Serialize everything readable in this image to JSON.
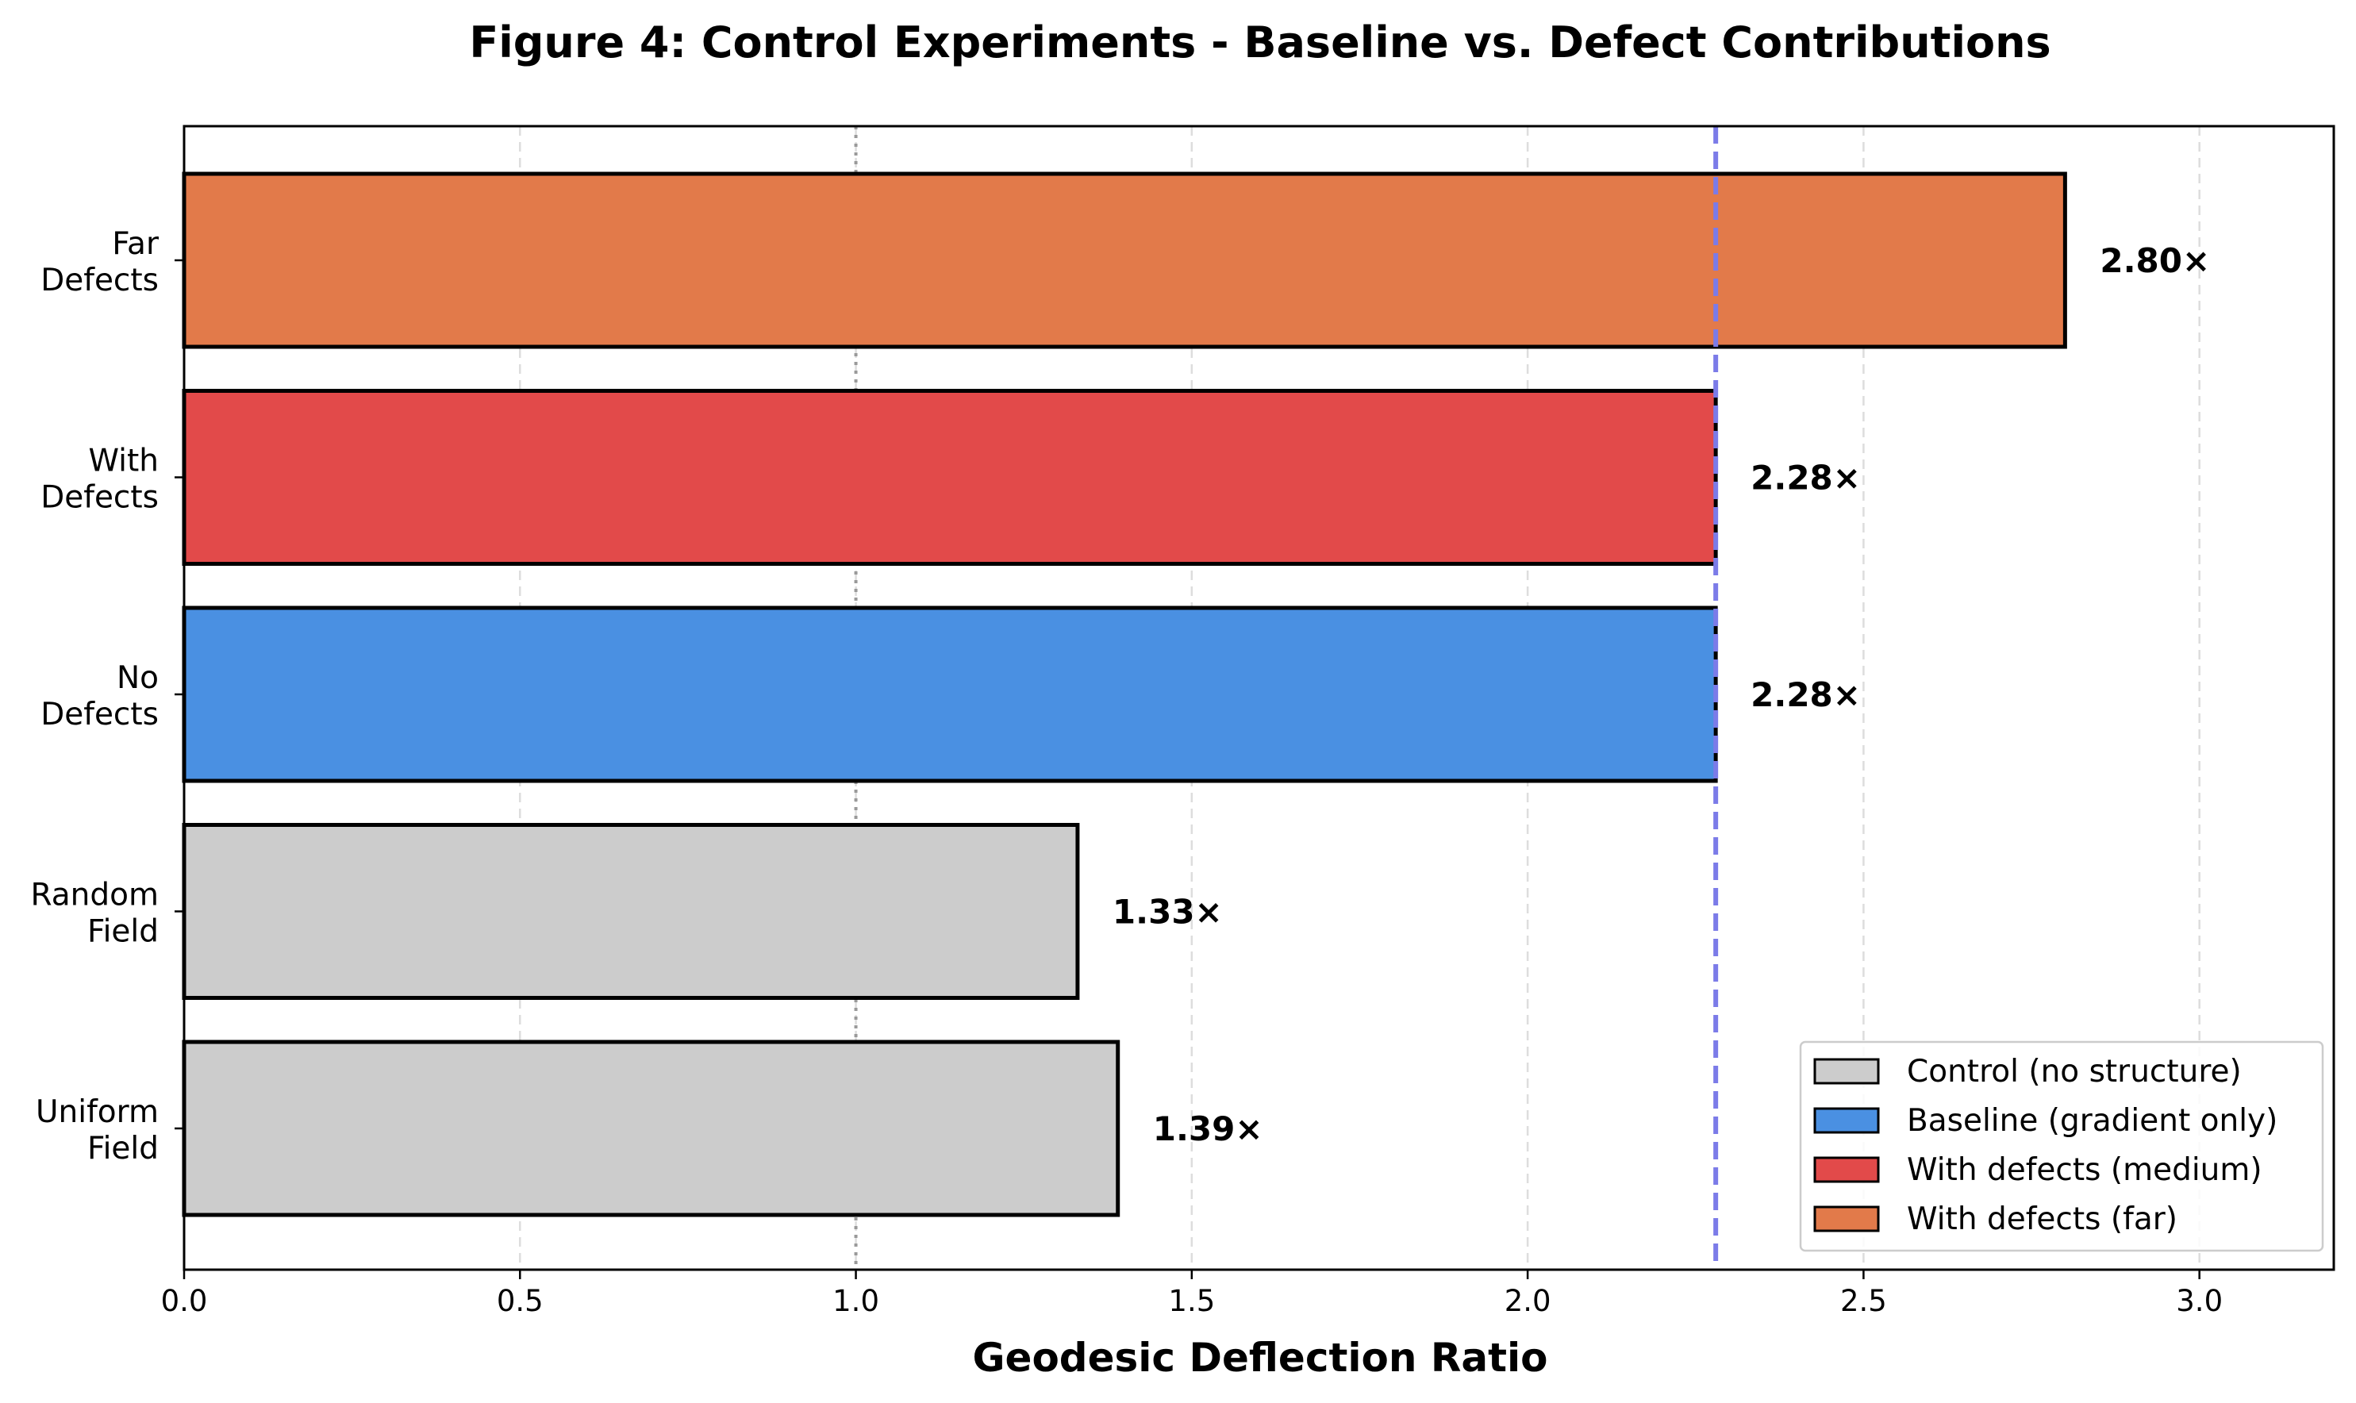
{
  "chart_data": {
    "type": "bar",
    "orientation": "horizontal",
    "title": "Figure 4: Control Experiments - Baseline vs. Defect Contributions",
    "xlabel": "Geodesic Deflection Ratio",
    "ylabel": "",
    "xlim": [
      0,
      3.2
    ],
    "xticks": [
      0.0,
      0.5,
      1.0,
      1.5,
      2.0,
      2.5,
      3.0
    ],
    "xtick_labels": [
      "0.0",
      "0.5",
      "1.0",
      "1.5",
      "2.0",
      "2.5",
      "3.0"
    ],
    "grid": "vertical dashed",
    "categories": [
      [
        "Uniform",
        "Field"
      ],
      [
        "Random",
        "Field"
      ],
      [
        "No",
        "Defects"
      ],
      [
        "With",
        "Defects"
      ],
      [
        "Far",
        "Defects"
      ]
    ],
    "values": [
      1.39,
      1.33,
      2.28,
      2.28,
      2.8
    ],
    "value_labels": [
      "1.39×",
      "1.33×",
      "2.28×",
      "2.28×",
      "2.80×"
    ],
    "bar_colors": [
      "#cccccc",
      "#cccccc",
      "#4a90e2",
      "#e24a4a",
      "#e27a4a"
    ],
    "reference_lines": [
      {
        "value": 1.0,
        "style": "dotted",
        "color": "#999999"
      },
      {
        "value": 2.28,
        "style": "dashed",
        "color": "#7b7be8"
      }
    ],
    "legend": {
      "position": "lower-right",
      "entries": [
        {
          "label": "Control (no structure)",
          "color": "#cccccc"
        },
        {
          "label": "Baseline (gradient only)",
          "color": "#4a90e2"
        },
        {
          "label": "With defects (medium)",
          "color": "#e24a4a"
        },
        {
          "label": "With defects (far)",
          "color": "#e27a4a"
        }
      ]
    }
  }
}
